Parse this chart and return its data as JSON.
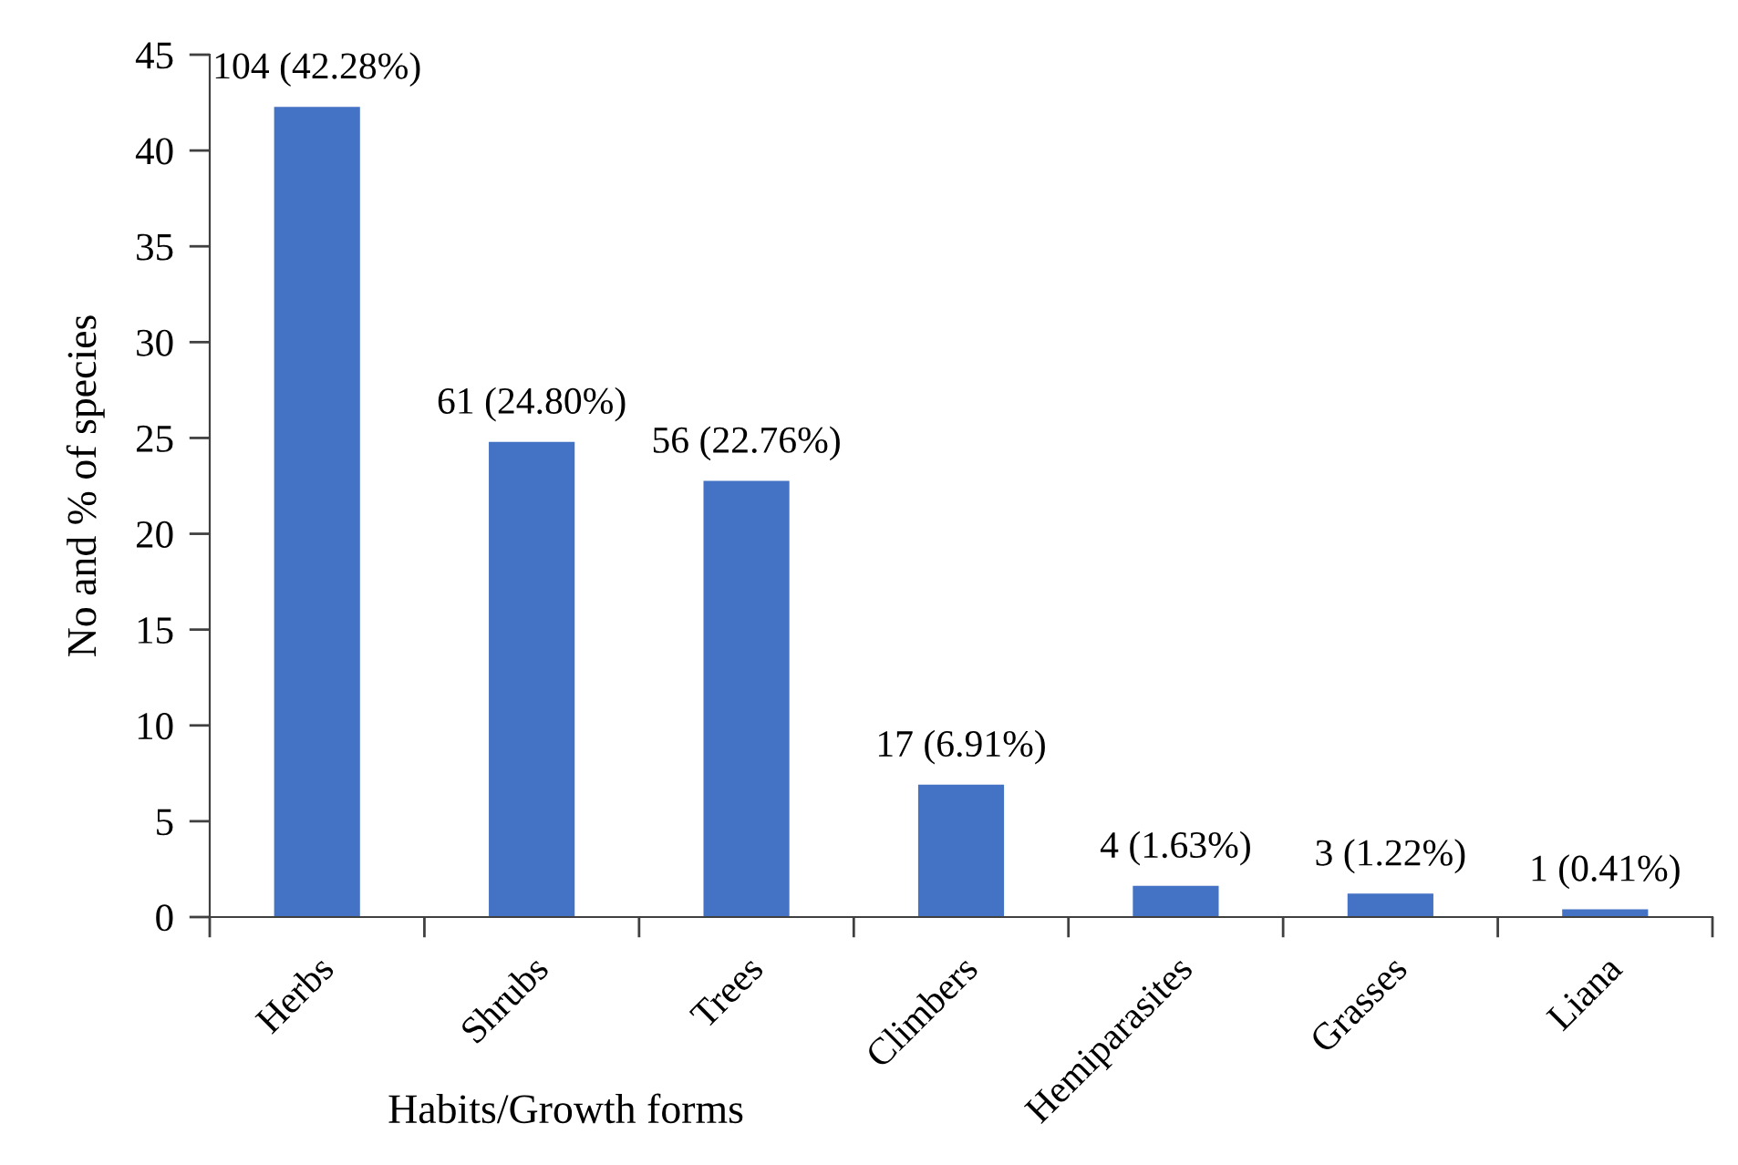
{
  "chart_data": {
    "type": "bar",
    "xlabel": "Habits/Growth forms",
    "ylabel": "No and % of species",
    "categories": [
      "Herbs",
      "Shrubs",
      "Trees",
      "Climbers",
      "Hemiparasites",
      "Grasses",
      "Liana"
    ],
    "values": [
      42.28,
      24.8,
      22.76,
      6.91,
      1.63,
      1.22,
      0.41
    ],
    "value_labels": [
      "104 (42.28%)",
      "61 (24.80%)",
      "56 (22.76%)",
      "17 (6.91%)",
      "4 (1.63%)",
      "3 (1.22%)",
      "1 (0.41%)"
    ],
    "color": "#4472c4",
    "ylim": [
      0,
      45
    ],
    "yticks": [
      0,
      5,
      10,
      15,
      20,
      25,
      30,
      35,
      40,
      45
    ],
    "grid": false,
    "legend": false
  }
}
